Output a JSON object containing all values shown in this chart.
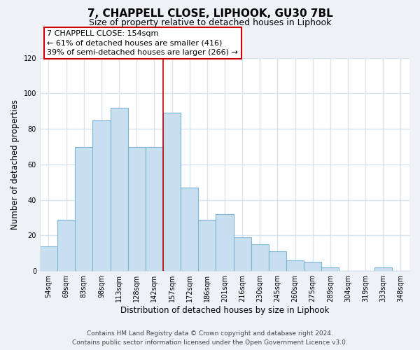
{
  "title": "7, CHAPPELL CLOSE, LIPHOOK, GU30 7BL",
  "subtitle": "Size of property relative to detached houses in Liphook",
  "xlabel": "Distribution of detached houses by size in Liphook",
  "ylabel": "Number of detached properties",
  "bar_labels": [
    "54sqm",
    "69sqm",
    "83sqm",
    "98sqm",
    "113sqm",
    "128sqm",
    "142sqm",
    "157sqm",
    "172sqm",
    "186sqm",
    "201sqm",
    "216sqm",
    "230sqm",
    "245sqm",
    "260sqm",
    "275sqm",
    "289sqm",
    "304sqm",
    "319sqm",
    "333sqm",
    "348sqm"
  ],
  "bar_values": [
    14,
    29,
    70,
    85,
    92,
    70,
    70,
    89,
    47,
    29,
    32,
    19,
    15,
    11,
    6,
    5,
    2,
    0,
    0,
    2,
    0
  ],
  "bar_color": "#c8dff0",
  "bar_edge_color": "#7bb4d4",
  "vline_x": 7.0,
  "annotation_line1": "7 CHAPPELL CLOSE: 154sqm",
  "annotation_line2": "← 61% of detached houses are smaller (416)",
  "annotation_line3": "39% of semi-detached houses are larger (266) →",
  "annotation_box_color": "#ffffff",
  "annotation_border_color": "#cc0000",
  "ylim": [
    0,
    120
  ],
  "yticks": [
    0,
    20,
    40,
    60,
    80,
    100,
    120
  ],
  "footer_line1": "Contains HM Land Registry data © Crown copyright and database right 2024.",
  "footer_line2": "Contains public sector information licensed under the Open Government Licence v3.0.",
  "bg_color": "#eef2f7",
  "plot_bg_color": "#ffffff",
  "grid_color": "#d8e4f0",
  "title_fontsize": 11,
  "subtitle_fontsize": 9,
  "axis_label_fontsize": 8.5,
  "tick_fontsize": 7,
  "annotation_fontsize": 8,
  "footer_fontsize": 6.5
}
